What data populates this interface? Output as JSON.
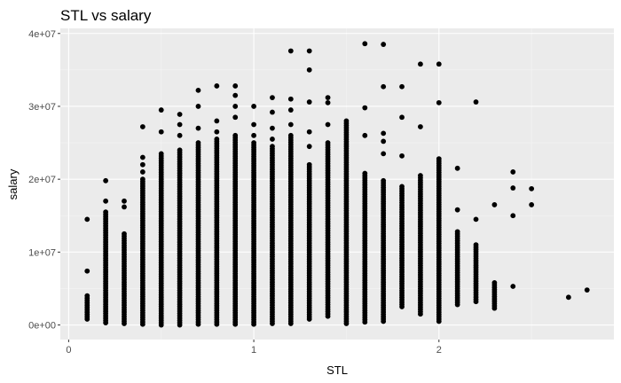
{
  "chart_data": {
    "type": "scatter",
    "title": "STL vs salary",
    "xlabel": "STL",
    "ylabel": "salary",
    "xlim": [
      -0.045,
      2.945
    ],
    "ylim": [
      -2000000,
      40700000
    ],
    "x_ticks": [
      {
        "value": 0,
        "label": "0"
      },
      {
        "value": 1,
        "label": "1"
      },
      {
        "value": 2,
        "label": "2"
      }
    ],
    "y_ticks": [
      {
        "value": 0,
        "label": "0e+00"
      },
      {
        "value": 10000000,
        "label": "1e+07"
      },
      {
        "value": 20000000,
        "label": "2e+07"
      },
      {
        "value": 30000000,
        "label": "3e+07"
      },
      {
        "value": 40000000,
        "label": "4e+07"
      }
    ],
    "grid": true,
    "legend": "none",
    "colors": {
      "panel": "#ebebeb",
      "grid_major": "#ffffff",
      "grid_minor": "#f5f5f5",
      "point": "#000000"
    },
    "columns": [
      {
        "x": 0.1,
        "min": 800000,
        "max": 4000000,
        "extra": [
          7400000,
          14500000
        ]
      },
      {
        "x": 0.2,
        "min": 300000,
        "max": 15500000,
        "extra": [
          17000000,
          19800000
        ]
      },
      {
        "x": 0.3,
        "min": 200000,
        "max": 12500000,
        "extra": [
          16200000,
          17000000
        ]
      },
      {
        "x": 0.4,
        "min": 100000,
        "max": 20000000,
        "extra": [
          21000000,
          22000000,
          23000000,
          27200000
        ]
      },
      {
        "x": 0.5,
        "min": 0,
        "max": 23500000,
        "extra": [
          26500000,
          29500000
        ]
      },
      {
        "x": 0.6,
        "min": 0,
        "max": 24000000,
        "extra": [
          26000000,
          27500000,
          28900000
        ]
      },
      {
        "x": 0.7,
        "min": 100000,
        "max": 25000000,
        "extra": [
          27000000,
          30000000,
          32200000
        ]
      },
      {
        "x": 0.8,
        "min": 100000,
        "max": 25500000,
        "extra": [
          26500000,
          28000000,
          32800000
        ]
      },
      {
        "x": 0.9,
        "min": 100000,
        "max": 26000000,
        "extra": [
          28500000,
          30000000,
          31500000,
          32800000
        ]
      },
      {
        "x": 1.0,
        "min": 100000,
        "max": 25000000,
        "extra": [
          26000000,
          27500000,
          30000000
        ]
      },
      {
        "x": 1.1,
        "min": 200000,
        "max": 24500000,
        "extra": [
          25500000,
          27000000,
          29200000,
          31200000
        ]
      },
      {
        "x": 1.2,
        "min": 200000,
        "max": 26000000,
        "extra": [
          27500000,
          29500000,
          31000000,
          37600000
        ]
      },
      {
        "x": 1.3,
        "min": 800000,
        "max": 22000000,
        "extra": [
          24500000,
          26500000,
          30600000,
          35000000,
          37600000
        ]
      },
      {
        "x": 1.4,
        "min": 1200000,
        "max": 25000000,
        "extra": [
          27500000,
          30500000,
          31200000
        ]
      },
      {
        "x": 1.5,
        "min": 200000,
        "max": 28000000,
        "extra": []
      },
      {
        "x": 1.6,
        "min": 400000,
        "max": 20800000,
        "extra": [
          26000000,
          29800000,
          38600000
        ]
      },
      {
        "x": 1.7,
        "min": 500000,
        "max": 19800000,
        "extra": [
          23500000,
          25200000,
          26300000,
          32700000,
          38500000
        ]
      },
      {
        "x": 1.8,
        "min": 2500000,
        "max": 19000000,
        "extra": [
          23200000,
          28500000,
          32700000
        ]
      },
      {
        "x": 1.9,
        "min": 1500000,
        "max": 20500000,
        "extra": [
          27200000,
          35800000
        ]
      },
      {
        "x": 2.0,
        "min": 500000,
        "max": 22800000,
        "extra": [
          30500000,
          35800000
        ]
      },
      {
        "x": 2.1,
        "min": 2800000,
        "max": 12800000,
        "extra": [
          15800000,
          21500000
        ]
      },
      {
        "x": 2.2,
        "min": 3200000,
        "max": 11000000,
        "extra": [
          14500000,
          30600000
        ]
      },
      {
        "x": 2.3,
        "min": 2300000,
        "max": 5800000,
        "extra": [
          16500000
        ]
      },
      {
        "x": 2.4,
        "min": 5300000,
        "max": 5300000,
        "extra": [
          15000000,
          18800000,
          21000000
        ]
      },
      {
        "x": 2.5,
        "min": 16500000,
        "max": 16500000,
        "extra": [
          18700000
        ]
      },
      {
        "x": 2.7,
        "min": 3800000,
        "max": 3800000,
        "extra": []
      },
      {
        "x": 2.8,
        "min": 4800000,
        "max": 4800000,
        "extra": []
      }
    ]
  }
}
